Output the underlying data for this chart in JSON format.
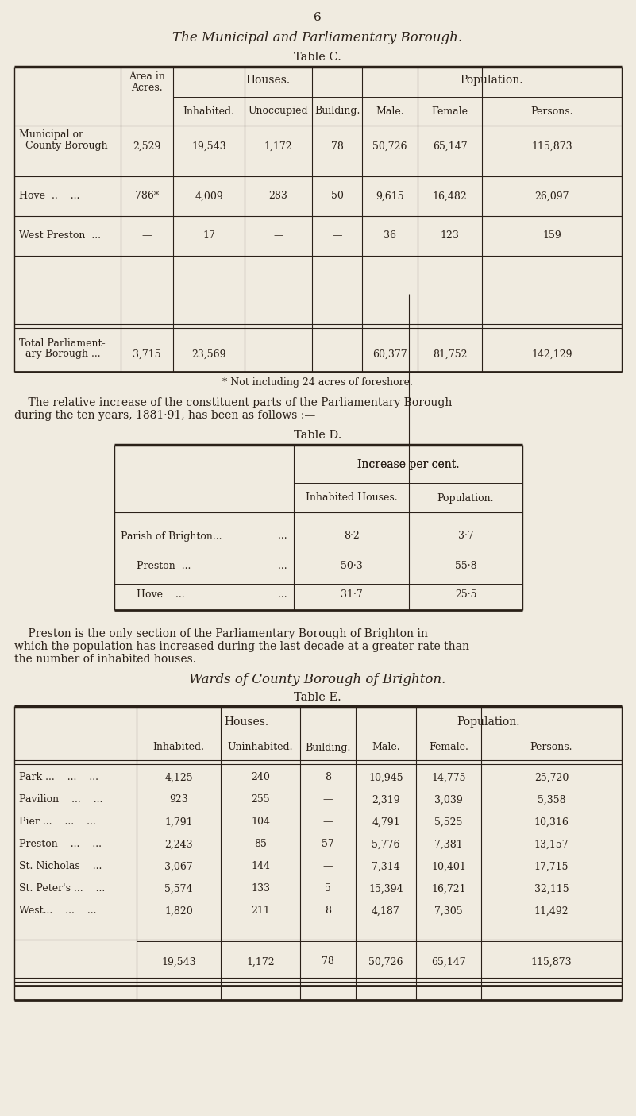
{
  "page_number": "6",
  "bg_color": "#f0ebe0",
  "text_color": "#2a2018",
  "main_title": "The Municipal and Parliamentary Borough.",
  "table_c_title": "Table C.",
  "table_c_footnote": "* Not including 24 acres of foreshore.",
  "para1_line1": "    The relative increase of the constituent parts of the Parliamentary Borough",
  "para1_line2": "during the ten years, 1881·91, has been as follows :—",
  "table_d_title": "Table D.",
  "table_d_rows": [
    [
      "Parish of Brighton...",
      "   ...",
      "8·2",
      "3·7"
    ],
    [
      "     Preston  ...",
      "   ...",
      "50·3",
      "55·8"
    ],
    [
      "     Hove    ...",
      "   ...",
      "31·7",
      "25·5"
    ]
  ],
  "para2_line1": "    Preston is the only section of the Parliamentary Borough of Brighton in",
  "para2_line2": "which the population has increased during the last decade at a greater rate than",
  "para2_line3": "the number of inhabited houses.",
  "table_e_heading": "Wards of County Borough of Brighton.",
  "table_e_title": "Table E.",
  "table_c_data": [
    [
      "Municipal or",
      "",
      "",
      "",
      "",
      "",
      "",
      ""
    ],
    [
      "  County Borough",
      "2,529",
      "19,543",
      "1,172",
      "78",
      "50,726",
      "65,147",
      "115,873"
    ],
    [
      "Hove  ..    ...",
      "786*",
      "4,009",
      "283",
      "50",
      "9,615",
      "16,482",
      "26,097"
    ],
    [
      "West Preston  ...",
      "—",
      "17",
      "—",
      "—",
      "36",
      "123",
      "159"
    ],
    [
      "Total Parliament-",
      "",
      "",
      "",
      "",
      "",
      "",
      ""
    ],
    [
      "  ary Borough ...",
      "3,715",
      "23,569",
      "",
      "",
      "60,377",
      "81,752",
      "142,129"
    ]
  ],
  "table_e_data": [
    [
      "Park ...    ...    ...",
      "4,125",
      "240",
      "8",
      "10,945",
      "14,775",
      "25,720"
    ],
    [
      "Pavilion    ...    ...",
      "923",
      "255",
      "—",
      "2,319",
      "3,039",
      "5,358"
    ],
    [
      "Pier ...    ...    ...",
      "1,791",
      "104",
      "—",
      "4,791",
      "5,525",
      "10,316"
    ],
    [
      "Preston    ...    ...",
      "2,243",
      "85",
      "57",
      "5,776",
      "7,381",
      "13,157"
    ],
    [
      "St. Nicholas    ...",
      "3,067",
      "144",
      "—",
      "7,314",
      "10,401",
      "17,715"
    ],
    [
      "St. Peter's ...    ...",
      "5,574",
      "133",
      "5",
      "15,394",
      "16,721",
      "32,115"
    ],
    [
      "West...    ...    ...",
      "1,820",
      "211",
      "8",
      "4,187",
      "7,305",
      "11,492"
    ],
    [
      "",
      "19,543",
      "1,172",
      "78",
      "50,726",
      "65,147",
      "115,873"
    ]
  ]
}
